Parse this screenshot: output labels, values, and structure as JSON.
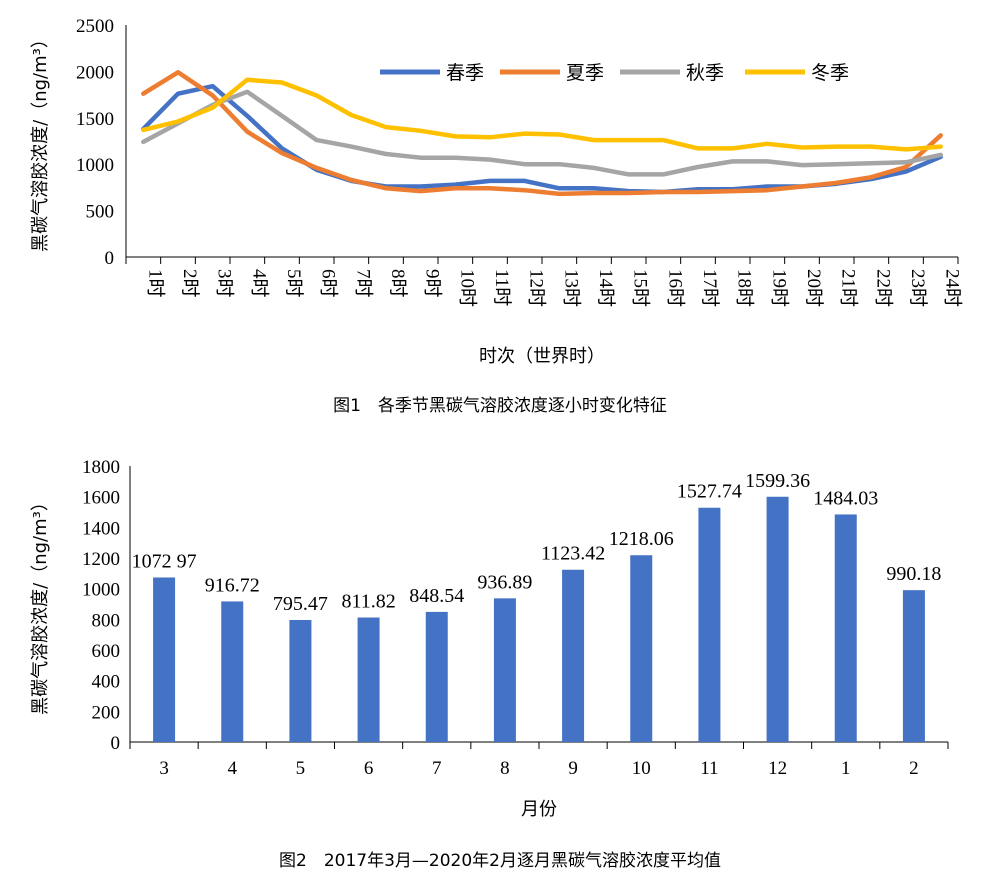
{
  "chart_data": [
    {
      "type": "line",
      "title": "",
      "ylabel": "黑碳气溶胶浓度/（ng/m³）",
      "xlabel": "时次（世界时）",
      "caption": "图1　各季节黑碳气溶胶浓度逐小时变化特征",
      "ylim": [
        0,
        2500
      ],
      "yticks": [
        0,
        500,
        1000,
        1500,
        2000,
        2500
      ],
      "categories": [
        "1时",
        "2时",
        "3时",
        "4时",
        "5时",
        "6时",
        "7时",
        "8时",
        "9时",
        "10时",
        "11时",
        "12时",
        "13时",
        "14时",
        "15时",
        "16时",
        "17时",
        "18时",
        "19时",
        "20时",
        "21时",
        "22时",
        "23时",
        "24时"
      ],
      "legend_position": "top-right",
      "series": [
        {
          "name": "春季",
          "color": "#4472C4",
          "values": [
            1380,
            1760,
            1840,
            1520,
            1170,
            940,
            820,
            760,
            760,
            780,
            820,
            820,
            740,
            740,
            710,
            700,
            730,
            730,
            760,
            760,
            790,
            840,
            920,
            1080
          ]
        },
        {
          "name": "夏季",
          "color": "#ED7D31",
          "values": [
            1760,
            1990,
            1740,
            1350,
            1120,
            960,
            830,
            740,
            710,
            740,
            740,
            720,
            680,
            690,
            690,
            700,
            700,
            710,
            720,
            760,
            800,
            860,
            970,
            1310
          ]
        },
        {
          "name": "秋季",
          "color": "#A5A5A5",
          "values": [
            1240,
            1440,
            1640,
            1780,
            1520,
            1260,
            1190,
            1110,
            1070,
            1070,
            1050,
            1000,
            1000,
            960,
            890,
            890,
            970,
            1030,
            1030,
            990,
            1000,
            1010,
            1020,
            1100
          ]
        },
        {
          "name": "冬季",
          "color": "#FFC000",
          "values": [
            1370,
            1460,
            1610,
            1910,
            1880,
            1740,
            1530,
            1400,
            1360,
            1300,
            1290,
            1330,
            1320,
            1260,
            1260,
            1260,
            1170,
            1170,
            1220,
            1180,
            1190,
            1190,
            1160,
            1190
          ]
        }
      ]
    },
    {
      "type": "bar",
      "title": "",
      "ylabel": "黑碳气溶胶浓度/（ng/m³）",
      "xlabel": "月份",
      "caption": "图2　2017年3月—2020年2月逐月黑碳气溶胶浓度平均值",
      "ylim": [
        0,
        1800
      ],
      "yticks": [
        0,
        200,
        400,
        600,
        800,
        1000,
        1200,
        1400,
        1600,
        1800
      ],
      "categories": [
        "3",
        "4",
        "5",
        "6",
        "7",
        "8",
        "9",
        "10",
        "11",
        "12",
        "1",
        "2"
      ],
      "values": [
        1072.97,
        916.72,
        795.47,
        811.82,
        848.54,
        936.89,
        1123.42,
        1218.06,
        1527.74,
        1599.36,
        1484.03,
        990.18
      ],
      "data_labels": [
        "1072 97",
        "916.72",
        "795.47",
        "811.82",
        "848.54",
        "936.89",
        "1123.42",
        "1218.06",
        "1527.74",
        "1599.36",
        "1484.03",
        "990.18"
      ],
      "bar_color": "#4472C4"
    }
  ]
}
